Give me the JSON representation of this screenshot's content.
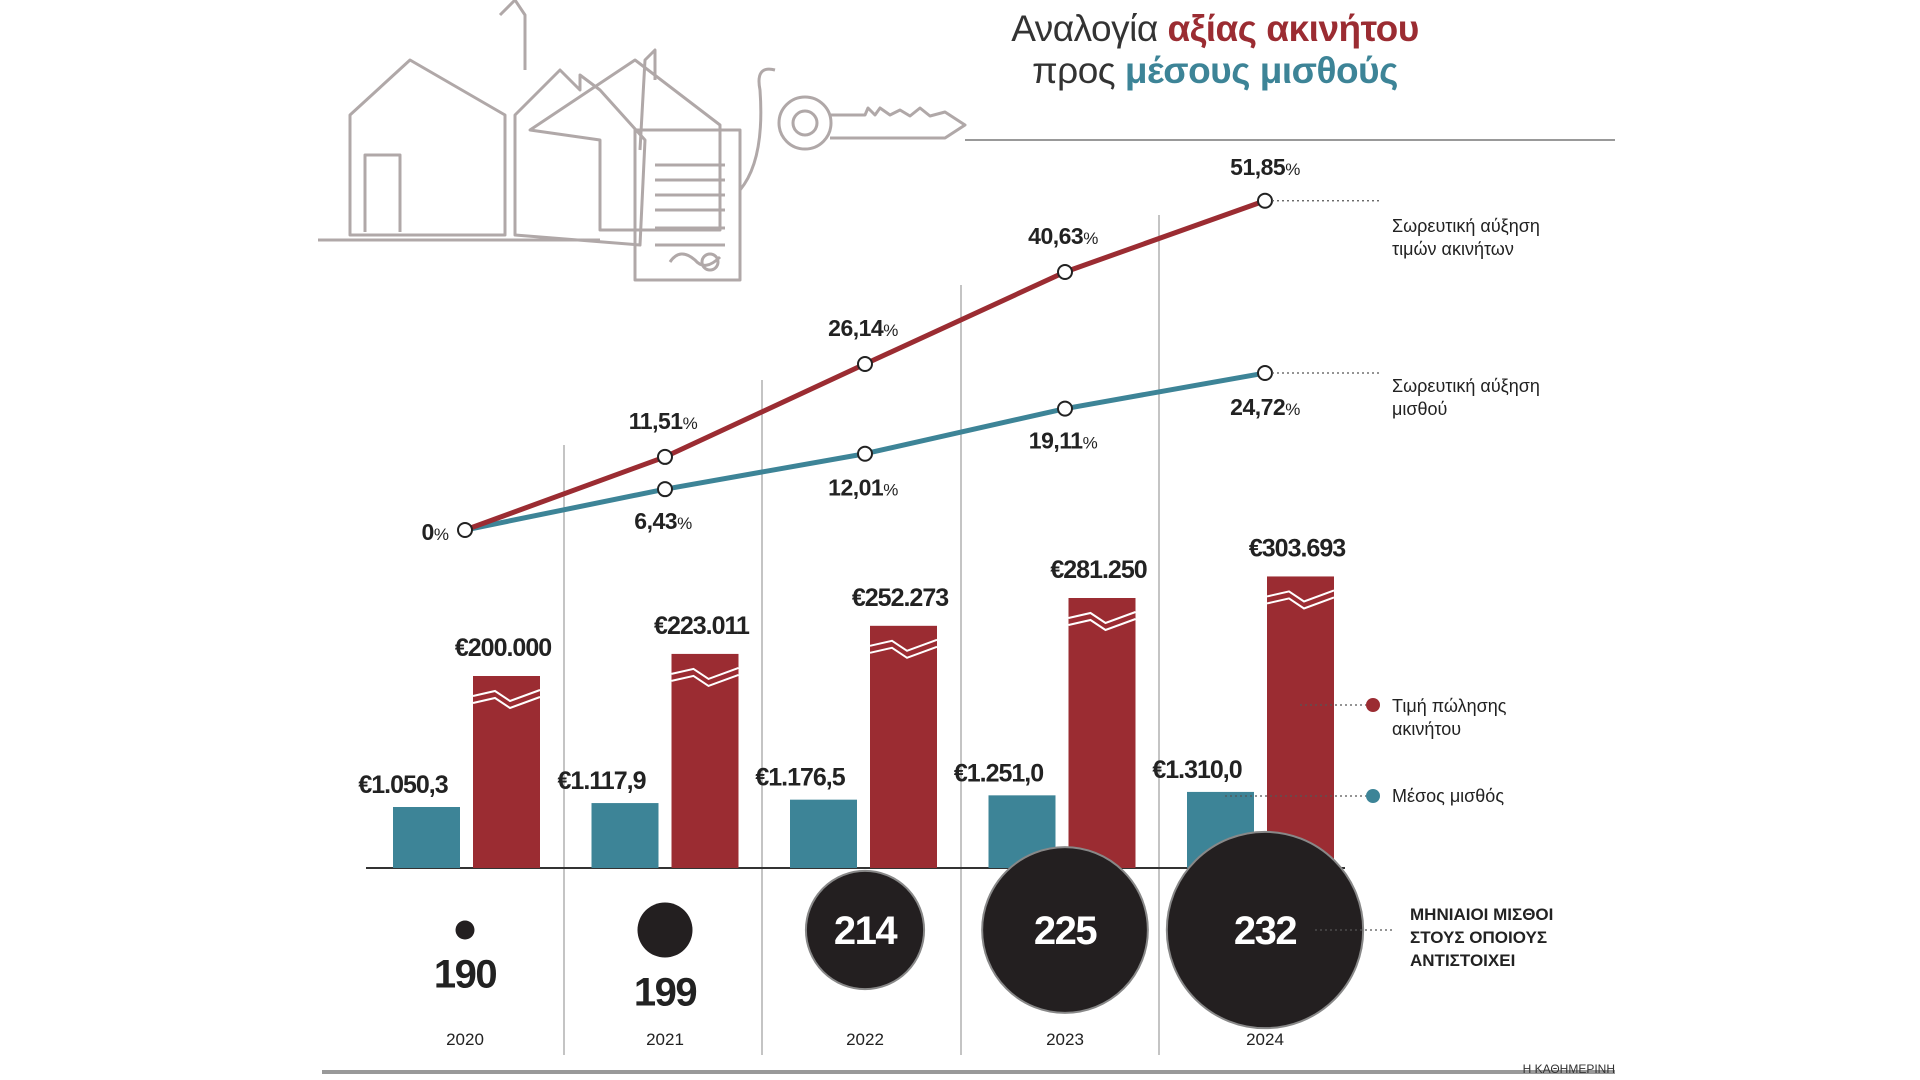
{
  "title": {
    "line1_plain": "Αναλογία ",
    "line1_highlight": "αξίας ακινήτου",
    "line2_plain": "προς ",
    "line2_highlight": "μέσους μισθούς"
  },
  "colors": {
    "property": "#9b2c32",
    "salary": "#3d8497",
    "bubble": "#231f20",
    "grid": "#888888",
    "sketch": "#b0a8a8"
  },
  "chart_data": {
    "type": "bar",
    "categories": [
      "2020",
      "2021",
      "2022",
      "2023",
      "2024"
    ],
    "series": [
      {
        "name": "Μέσος μισθός",
        "values": [
          1050.3,
          1117.9,
          1176.5,
          1251.0,
          1310.0
        ],
        "labels": [
          "€1.050,3",
          "€1.117,9",
          "€1.176,5",
          "€1.251,0",
          "€1.310,0"
        ]
      },
      {
        "name": "Τιμή πώλησης ακινήτου",
        "values": [
          200000,
          223011,
          252273,
          281250,
          303693
        ],
        "labels": [
          "€200.000",
          "€223.011",
          "€252.273",
          "€281.250",
          "€303.693"
        ]
      }
    ],
    "lines": [
      {
        "name": "Σωρευτική αύξηση τιμών ακινήτων",
        "values": [
          0,
          11.51,
          26.14,
          40.63,
          51.85
        ],
        "labels": [
          "0",
          "11,51",
          "26,14",
          "40,63",
          "51,85"
        ]
      },
      {
        "name": "Σωρευτική αύξηση μισθού",
        "values": [
          0,
          6.43,
          12.01,
          19.11,
          24.72
        ],
        "labels": [
          "",
          "6,43",
          "12,01",
          "19,11",
          "24,72"
        ]
      }
    ],
    "percent_sign": "%",
    "bubbles": {
      "name": "ΜΗΝΙΑΙΟΙ ΜΙΣΘΟΙ ΣΤΟΥΣ ΟΠΟΙΟΥΣ ΑΝΤΙΣΤΟΙΧΕΙ",
      "values": [
        190,
        199,
        214,
        225,
        232
      ]
    }
  },
  "legend": {
    "line_property": [
      "Σωρευτική αύξηση",
      "τιμών ακινήτων"
    ],
    "line_salary": [
      "Σωρευτική αύξηση",
      "μισθού"
    ],
    "bar_property": [
      "Τιμή πώλησης",
      "ακινήτου"
    ],
    "bar_salary": [
      "Μέσος μισθός"
    ],
    "bubbles": [
      "ΜΗΝΙΑΙΟΙ ΜΙΣΘΟΙ",
      "ΣΤΟΥΣ ΟΠΟΙΟΥΣ",
      "ΑΝΤΙΣΤΟΙΧΕΙ"
    ]
  },
  "source": "Η ΚΑΘΗΜΕΡΙΝΗ"
}
